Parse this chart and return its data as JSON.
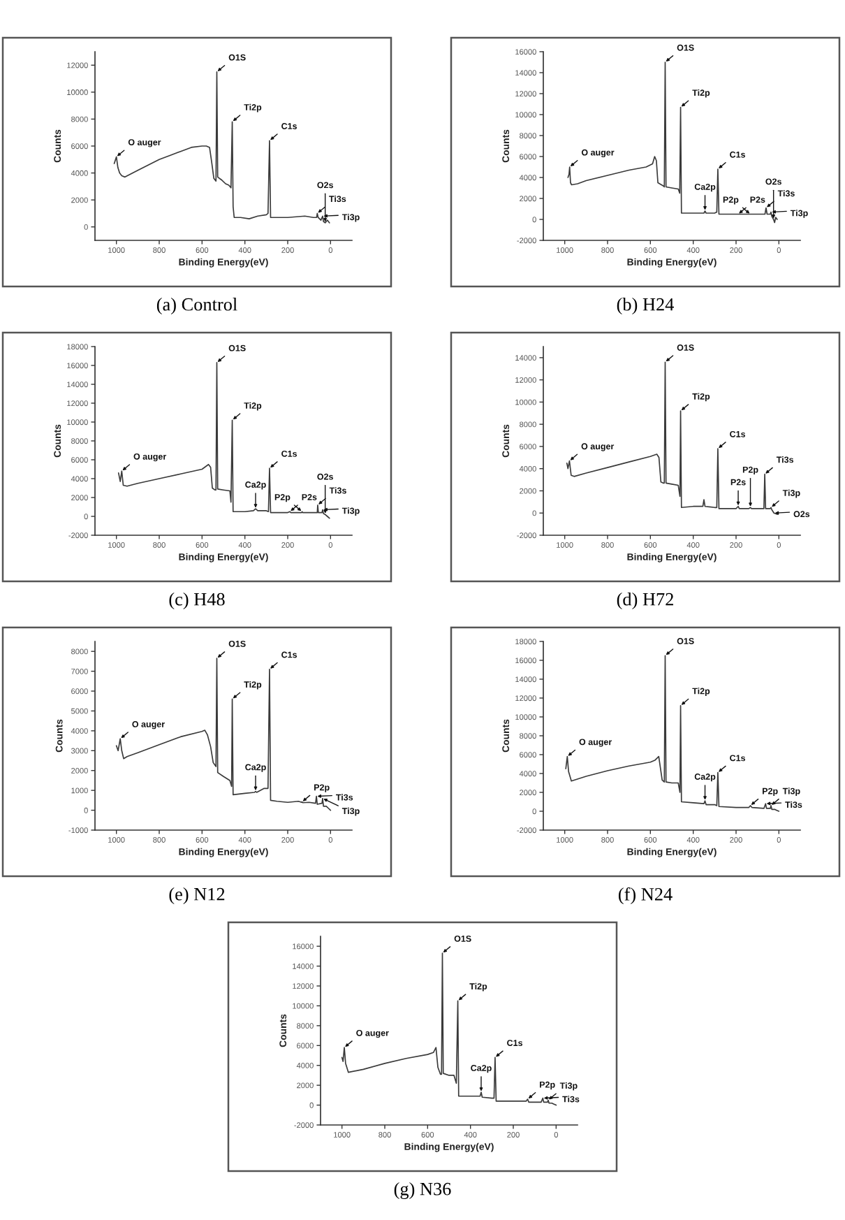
{
  "chart_data": [
    {
      "type": "line",
      "title": "(a) Control",
      "xlabel": "Binding Energy(eV)",
      "ylabel": "Counts",
      "color": "#3a3a3a",
      "x": [
        1010,
        1000,
        993,
        985,
        975,
        960,
        900,
        850,
        800,
        750,
        700,
        650,
        600,
        580,
        565,
        555,
        545,
        535,
        531,
        527,
        510,
        490,
        475,
        465,
        459,
        455,
        450,
        420,
        380,
        340,
        300,
        292,
        285,
        280,
        200,
        120,
        80,
        65,
        62,
        58,
        45,
        37,
        33,
        25,
        15,
        5
      ],
      "values": [
        4700,
        5200,
        4400,
        4000,
        3800,
        3700,
        4200,
        4600,
        5000,
        5300,
        5600,
        5900,
        6000,
        6000,
        5900,
        4800,
        3600,
        3400,
        11500,
        3700,
        3500,
        3200,
        3100,
        2900,
        7800,
        1500,
        700,
        700,
        600,
        800,
        900,
        1000,
        6400,
        700,
        700,
        800,
        700,
        700,
        1000,
        700,
        500,
        800,
        400,
        300,
        500,
        300
      ],
      "xlim": [
        1100,
        -100
      ],
      "xticks": [
        1000,
        800,
        600,
        400,
        200,
        0
      ],
      "ylim": [
        -1000,
        13000
      ],
      "yticks": [
        0,
        2000,
        4000,
        6000,
        8000,
        10000,
        12000
      ],
      "annotations": [
        {
          "text": "O auger",
          "x": 1000,
          "y": 5200
        },
        {
          "text": "O1S",
          "x": 531,
          "y": 11500
        },
        {
          "text": "Ti2p",
          "x": 459,
          "y": 7800
        },
        {
          "text": "C1s",
          "x": 285,
          "y": 6400
        },
        {
          "text": "Ti3s",
          "x": 62,
          "y": 1000
        },
        {
          "text": "Ti3p",
          "x": 37,
          "y": 800
        },
        {
          "text": "O2s",
          "x": 25,
          "y": 300
        }
      ]
    },
    {
      "type": "line",
      "title": "(b) H24",
      "xlabel": "Binding Energy(eV)",
      "ylabel": "Counts",
      "color": "#3a3a3a",
      "x": [
        985,
        980,
        977,
        973,
        968,
        940,
        900,
        800,
        700,
        620,
        590,
        580,
        572,
        565,
        540,
        535,
        531,
        527,
        500,
        470,
        463,
        459,
        455,
        400,
        350,
        345,
        340,
        300,
        290,
        285,
        280,
        200,
        150,
        100,
        65,
        60,
        55,
        40,
        37,
        33,
        25,
        20,
        15,
        8
      ],
      "values": [
        4000,
        4300,
        5000,
        3500,
        3300,
        3400,
        3700,
        4200,
        4700,
        5000,
        5300,
        6000,
        5600,
        3500,
        3200,
        3100,
        15000,
        3100,
        3000,
        2900,
        2500,
        10700,
        600,
        600,
        600,
        800,
        600,
        600,
        700,
        4800,
        500,
        500,
        500,
        500,
        500,
        1100,
        500,
        500,
        700,
        300,
        0,
        -300,
        200,
        0
      ],
      "xlim": [
        1100,
        -100
      ],
      "xticks": [
        1000,
        800,
        600,
        400,
        200,
        0
      ],
      "ylim": [
        -2000,
        16000
      ],
      "yticks": [
        -2000,
        0,
        2000,
        4000,
        6000,
        8000,
        10000,
        12000,
        14000,
        16000
      ],
      "annotations": [
        {
          "text": "O auger",
          "x": 977,
          "y": 5000
        },
        {
          "text": "O1S",
          "x": 531,
          "y": 15000
        },
        {
          "text": "Ti2p",
          "x": 459,
          "y": 10700
        },
        {
          "text": "Ca2p",
          "x": 345,
          "y": 800
        },
        {
          "text": "C1s",
          "x": 285,
          "y": 4800
        },
        {
          "text": "P2s",
          "x": 190,
          "y": 500
        },
        {
          "text": "P2p",
          "x": 133,
          "y": 500
        },
        {
          "text": "Ti3s",
          "x": 60,
          "y": 1100
        },
        {
          "text": "Ti3p",
          "x": 37,
          "y": 700
        },
        {
          "text": "O2s",
          "x": 25,
          "y": 0
        }
      ]
    },
    {
      "type": "line",
      "title": "(c) H48",
      "xlabel": "Binding Energy(eV)",
      "ylabel": "Counts",
      "color": "#3a3a3a",
      "x": [
        990,
        982,
        975,
        968,
        950,
        900,
        800,
        700,
        600,
        570,
        560,
        552,
        540,
        535,
        531,
        527,
        500,
        470,
        465,
        459,
        455,
        400,
        360,
        350,
        340,
        300,
        290,
        285,
        280,
        200,
        190,
        185,
        150,
        135,
        133,
        130,
        100,
        62,
        60,
        57,
        40,
        37,
        33,
        25,
        15,
        5
      ],
      "values": [
        4600,
        3700,
        4800,
        3300,
        3200,
        3500,
        4000,
        4500,
        5000,
        5500,
        5200,
        3000,
        2800,
        2800,
        16300,
        2900,
        2800,
        2700,
        1500,
        10200,
        500,
        500,
        600,
        800,
        600,
        600,
        500,
        5100,
        400,
        400,
        500,
        400,
        400,
        400,
        500,
        400,
        400,
        400,
        1200,
        400,
        400,
        700,
        300,
        200,
        0,
        -200
      ],
      "xlim": [
        1100,
        -100
      ],
      "xticks": [
        1000,
        800,
        600,
        400,
        200,
        0
      ],
      "ylim": [
        -2000,
        18000
      ],
      "yticks": [
        -2000,
        0,
        2000,
        4000,
        6000,
        8000,
        10000,
        12000,
        14000,
        16000,
        18000
      ],
      "annotations": [
        {
          "text": "O auger",
          "x": 975,
          "y": 4800
        },
        {
          "text": "O1S",
          "x": 531,
          "y": 16300
        },
        {
          "text": "Ti2p",
          "x": 459,
          "y": 10200
        },
        {
          "text": "Ca2p",
          "x": 350,
          "y": 800
        },
        {
          "text": "C1s",
          "x": 285,
          "y": 5100
        },
        {
          "text": "P2s",
          "x": 190,
          "y": 500
        },
        {
          "text": "P2p",
          "x": 133,
          "y": 500
        },
        {
          "text": "Ti3s",
          "x": 60,
          "y": 1200
        },
        {
          "text": "Ti3p",
          "x": 37,
          "y": 700
        },
        {
          "text": "O2s",
          "x": 25,
          "y": 200
        }
      ]
    },
    {
      "type": "line",
      "title": "(d) H72",
      "xlabel": "Binding Energy(eV)",
      "ylabel": "Counts",
      "color": "#3a3a3a",
      "x": [
        990,
        985,
        978,
        970,
        956,
        900,
        800,
        700,
        600,
        570,
        560,
        551,
        540,
        535,
        531,
        527,
        500,
        470,
        462,
        459,
        455,
        400,
        355,
        350,
        345,
        300,
        290,
        285,
        280,
        200,
        190,
        185,
        140,
        133,
        128,
        70,
        66,
        62,
        40,
        37,
        33,
        23,
        10,
        3
      ],
      "values": [
        4500,
        4000,
        4700,
        3400,
        3300,
        3600,
        4100,
        4600,
        5100,
        5300,
        5000,
        2800,
        2700,
        2700,
        13600,
        2700,
        2600,
        2500,
        1500,
        9200,
        500,
        600,
        600,
        1200,
        600,
        500,
        500,
        5800,
        400,
        400,
        600,
        400,
        400,
        500,
        400,
        400,
        3500,
        400,
        400,
        500,
        300,
        0,
        -100,
        -100
      ],
      "xlim": [
        1100,
        -100
      ],
      "xticks": [
        1000,
        800,
        600,
        400,
        200,
        0
      ],
      "ylim": [
        -2000,
        15000
      ],
      "yticks": [
        -2000,
        0,
        2000,
        4000,
        6000,
        8000,
        10000,
        12000,
        14000
      ],
      "annotations": [
        {
          "text": "O auger",
          "x": 978,
          "y": 4700
        },
        {
          "text": "O1S",
          "x": 531,
          "y": 13600
        },
        {
          "text": "Ti2p",
          "x": 459,
          "y": 9200
        },
        {
          "text": "C1s",
          "x": 285,
          "y": 5800
        },
        {
          "text": "P2s",
          "x": 190,
          "y": 600
        },
        {
          "text": "P2p",
          "x": 133,
          "y": 500
        },
        {
          "text": "Ti3s",
          "x": 66,
          "y": 3500
        },
        {
          "text": "Ti3p",
          "x": 37,
          "y": 500
        },
        {
          "text": "O2s",
          "x": 23,
          "y": 0
        }
      ]
    },
    {
      "type": "line",
      "title": "(e) N12",
      "xlabel": "Binding Energy(eV)",
      "ylabel": "Counts",
      "color": "#3a3a3a",
      "x": [
        1000,
        992,
        982,
        975,
        966,
        950,
        900,
        800,
        700,
        600,
        587,
        575,
        560,
        548,
        535,
        531,
        527,
        500,
        470,
        462,
        459,
        455,
        400,
        355,
        350,
        345,
        310,
        292,
        285,
        280,
        250,
        200,
        150,
        135,
        133,
        130,
        100,
        70,
        66,
        62,
        40,
        37,
        33,
        20,
        10,
        0
      ],
      "values": [
        3250,
        3000,
        3600,
        3000,
        2600,
        2700,
        2900,
        3300,
        3700,
        3970,
        4030,
        3800,
        3200,
        2400,
        2200,
        7650,
        1900,
        1700,
        1500,
        1200,
        5600,
        780,
        850,
        900,
        950,
        900,
        1100,
        1100,
        7100,
        500,
        450,
        400,
        450,
        400,
        420,
        380,
        400,
        350,
        700,
        300,
        350,
        600,
        200,
        200,
        100,
        0
      ],
      "xlim": [
        1100,
        -100
      ],
      "xticks": [
        1000,
        800,
        600,
        400,
        200,
        0
      ],
      "ylim": [
        -1000,
        8500
      ],
      "yticks": [
        -1000,
        0,
        1000,
        2000,
        3000,
        4000,
        5000,
        6000,
        7000,
        8000
      ],
      "annotations": [
        {
          "text": "O auger",
          "x": 982,
          "y": 3600
        },
        {
          "text": "O1S",
          "x": 531,
          "y": 7650
        },
        {
          "text": "Ti2p",
          "x": 459,
          "y": 5600
        },
        {
          "text": "Ca2p",
          "x": 350,
          "y": 950
        },
        {
          "text": "C1s",
          "x": 285,
          "y": 7100
        },
        {
          "text": "P2p",
          "x": 133,
          "y": 420
        },
        {
          "text": "Ti3s",
          "x": 66,
          "y": 700
        },
        {
          "text": "Ti3p",
          "x": 37,
          "y": 600
        }
      ]
    },
    {
      "type": "line",
      "title": "(f) N24",
      "xlabel": "Binding Energy(eV)",
      "ylabel": "Counts",
      "color": "#3a3a3a",
      "x": [
        995,
        988,
        982,
        969,
        900,
        800,
        700,
        600,
        579,
        561,
        545,
        535,
        531,
        527,
        500,
        470,
        462,
        459,
        455,
        400,
        350,
        345,
        340,
        300,
        290,
        285,
        280,
        200,
        140,
        133,
        126,
        70,
        62,
        58,
        40,
        37,
        33,
        20,
        10,
        0
      ],
      "values": [
        4500,
        5800,
        4200,
        3200,
        3700,
        4300,
        4800,
        5200,
        5400,
        5800,
        3300,
        3100,
        16500,
        3100,
        3000,
        3000,
        2000,
        11200,
        1000,
        900,
        800,
        1100,
        700,
        700,
        600,
        4100,
        500,
        400,
        400,
        600,
        400,
        300,
        800,
        300,
        300,
        600,
        200,
        200,
        100,
        0
      ],
      "xlim": [
        1100,
        -100
      ],
      "xticks": [
        1000,
        800,
        600,
        400,
        200,
        0
      ],
      "ylim": [
        -2000,
        18000
      ],
      "yticks": [
        -2000,
        0,
        2000,
        4000,
        6000,
        8000,
        10000,
        12000,
        14000,
        16000,
        18000
      ],
      "annotations": [
        {
          "text": "O auger",
          "x": 988,
          "y": 5800
        },
        {
          "text": "O1S",
          "x": 531,
          "y": 16500
        },
        {
          "text": "Ti2p",
          "x": 459,
          "y": 11200
        },
        {
          "text": "Ca2p",
          "x": 345,
          "y": 1100
        },
        {
          "text": "C1s",
          "x": 285,
          "y": 4100
        },
        {
          "text": "P2p",
          "x": 133,
          "y": 600
        },
        {
          "text": "Ti3s",
          "x": 62,
          "y": 800
        },
        {
          "text": "Ti3p",
          "x": 37,
          "y": 600
        }
      ]
    },
    {
      "type": "line",
      "title": "(g) N36",
      "xlabel": "Binding Energy(eV)",
      "ylabel": "Counts",
      "color": "#3a3a3a",
      "x": [
        1000,
        995,
        989,
        983,
        970,
        900,
        800,
        700,
        600,
        573,
        561,
        552,
        540,
        535,
        531,
        527,
        500,
        477,
        466,
        459,
        455,
        400,
        355,
        350,
        345,
        300,
        290,
        285,
        280,
        200,
        140,
        133,
        128,
        70,
        62,
        58,
        40,
        37,
        33,
        20,
        10,
        0
      ],
      "values": [
        4800,
        4400,
        5800,
        4200,
        3300,
        3600,
        4200,
        4700,
        5100,
        5300,
        5800,
        3800,
        3100,
        3100,
        15300,
        3200,
        3000,
        3000,
        2200,
        10500,
        900,
        900,
        900,
        1300,
        800,
        700,
        700,
        4800,
        400,
        400,
        400,
        600,
        300,
        300,
        700,
        300,
        300,
        500,
        200,
        200,
        100,
        0
      ],
      "xlim": [
        1100,
        -100
      ],
      "xticks": [
        1000,
        800,
        600,
        400,
        200,
        0
      ],
      "ylim": [
        -2000,
        17000
      ],
      "yticks": [
        -2000,
        0,
        2000,
        4000,
        6000,
        8000,
        10000,
        12000,
        14000,
        16000
      ],
      "annotations": [
        {
          "text": "O auger",
          "x": 989,
          "y": 5800
        },
        {
          "text": "O1S",
          "x": 531,
          "y": 15300
        },
        {
          "text": "Ti2p",
          "x": 459,
          "y": 10500
        },
        {
          "text": "Ca2p",
          "x": 350,
          "y": 1300
        },
        {
          "text": "C1s",
          "x": 285,
          "y": 4800
        },
        {
          "text": "P2p",
          "x": 133,
          "y": 600
        },
        {
          "text": "Ti3s",
          "x": 62,
          "y": 700
        },
        {
          "text": "Ti3p",
          "x": 37,
          "y": 500
        }
      ]
    }
  ]
}
